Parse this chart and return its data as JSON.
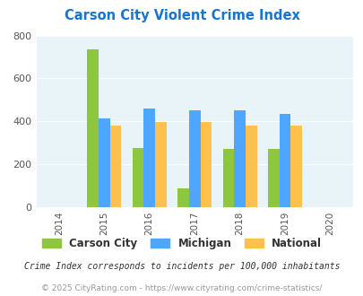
{
  "title": "Carson City Violent Crime Index",
  "title_color": "#1874CD",
  "years": [
    2014,
    2015,
    2016,
    2017,
    2018,
    2019,
    2020
  ],
  "bar_years": [
    2015,
    2016,
    2017,
    2018,
    2019
  ],
  "carson_city": [
    735,
    275,
    88,
    270,
    270
  ],
  "michigan": [
    415,
    460,
    450,
    450,
    435
  ],
  "national": [
    380,
    395,
    395,
    380,
    380
  ],
  "carson_color": "#8DC63F",
  "michigan_color": "#4DA6FF",
  "national_color": "#FFC04C",
  "bg_color": "#E8F4F8",
  "ylim": [
    0,
    800
  ],
  "yticks": [
    0,
    200,
    400,
    600,
    800
  ],
  "legend_labels": [
    "Carson City",
    "Michigan",
    "National"
  ],
  "footnote1": "Crime Index corresponds to incidents per 100,000 inhabitants",
  "footnote2": "© 2025 CityRating.com - https://www.cityrating.com/crime-statistics/",
  "bar_width": 0.25,
  "footnote1_color": "#333333",
  "footnote2_color": "#999999"
}
